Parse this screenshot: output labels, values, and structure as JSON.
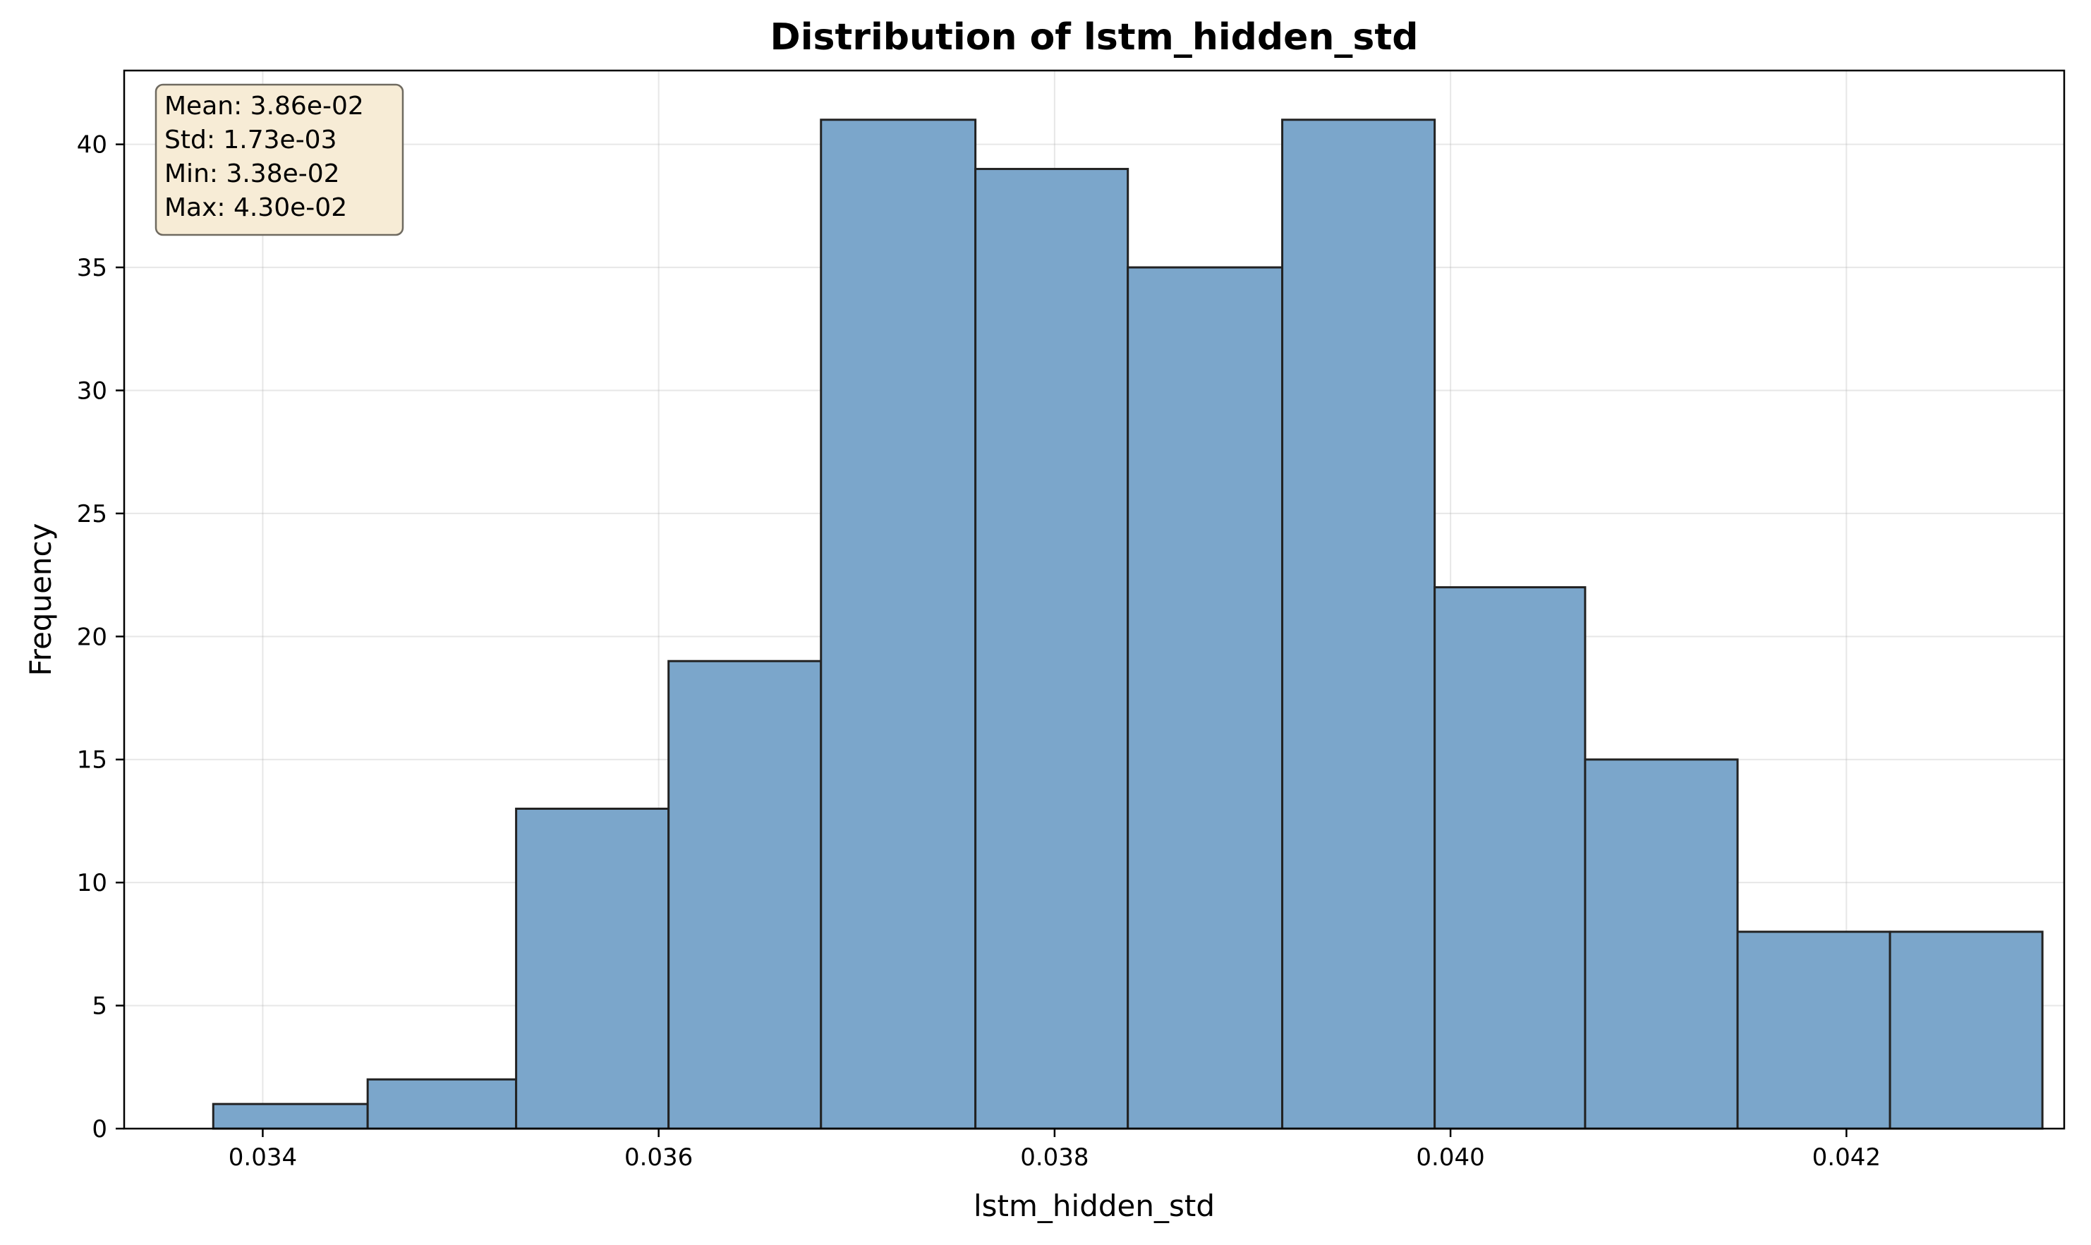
{
  "chart_data": {
    "type": "bar",
    "title": "Distribution of lstm_hidden_std",
    "xlabel": "lstm_hidden_std",
    "ylabel": "Frequency",
    "xlim": [
      0.0333,
      0.0431
    ],
    "ylim": [
      0,
      43
    ],
    "grid": true,
    "bar_color": "#7ba6cb",
    "bar_edge_color": "#222222",
    "bins": [
      {
        "x0": 0.03375,
        "x1": 0.03453,
        "count": 1
      },
      {
        "x0": 0.03453,
        "x1": 0.03528,
        "count": 2
      },
      {
        "x0": 0.03528,
        "x1": 0.03605,
        "count": 13
      },
      {
        "x0": 0.03605,
        "x1": 0.03682,
        "count": 19
      },
      {
        "x0": 0.03682,
        "x1": 0.0376,
        "count": 41
      },
      {
        "x0": 0.0376,
        "x1": 0.03837,
        "count": 39
      },
      {
        "x0": 0.03837,
        "x1": 0.03915,
        "count": 35
      },
      {
        "x0": 0.03915,
        "x1": 0.03992,
        "count": 41
      },
      {
        "x0": 0.03992,
        "x1": 0.04068,
        "count": 22
      },
      {
        "x0": 0.04068,
        "x1": 0.04145,
        "count": 15
      },
      {
        "x0": 0.04145,
        "x1": 0.04222,
        "count": 8
      },
      {
        "x0": 0.04222,
        "x1": 0.04299,
        "count": 8
      }
    ],
    "x_ticks": [
      {
        "value": 0.034,
        "label": "0.034"
      },
      {
        "value": 0.036,
        "label": "0.036"
      },
      {
        "value": 0.038,
        "label": "0.038"
      },
      {
        "value": 0.04,
        "label": "0.040"
      },
      {
        "value": 0.042,
        "label": "0.042"
      }
    ],
    "y_ticks": [
      {
        "value": 0,
        "label": "0"
      },
      {
        "value": 5,
        "label": "5"
      },
      {
        "value": 10,
        "label": "10"
      },
      {
        "value": 15,
        "label": "15"
      },
      {
        "value": 20,
        "label": "20"
      },
      {
        "value": 25,
        "label": "25"
      },
      {
        "value": 30,
        "label": "30"
      },
      {
        "value": 35,
        "label": "35"
      },
      {
        "value": 40,
        "label": "40"
      }
    ],
    "stats_box": {
      "placement": "top-left",
      "lines": [
        "Mean: 3.86e-02",
        "Std: 1.73e-03",
        "Min: 3.38e-02",
        "Max: 4.30e-02"
      ],
      "face_color": "#f7ecd6",
      "edge_color": "#6f6a60"
    }
  }
}
